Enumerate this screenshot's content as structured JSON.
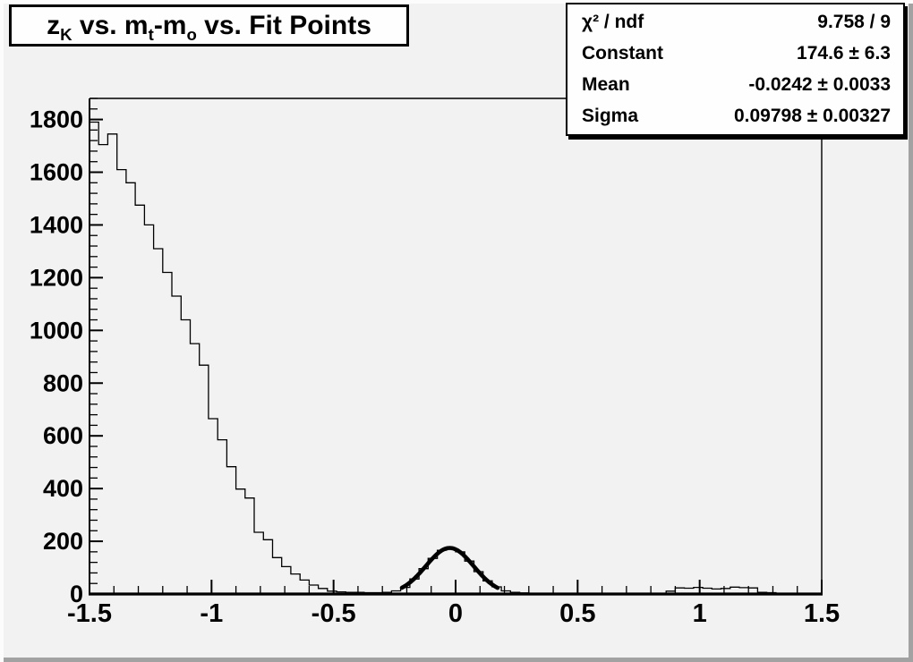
{
  "canvas": {
    "background": "#f2f2f2",
    "bevel_light": "#fcfcfc",
    "bevel_dark": "#a2a2a2",
    "ink": "#000000"
  },
  "title_box": {
    "plain_title": "z_K vs. m_t-m_o vs. Fit Points",
    "segments": [
      {
        "text": "z"
      },
      {
        "text": "K",
        "sub": true
      },
      {
        "text": " vs. m"
      },
      {
        "text": "t",
        "sub": true
      },
      {
        "text": "-m"
      },
      {
        "text": "o",
        "sub": true
      },
      {
        "text": " vs. Fit Points"
      }
    ]
  },
  "stats_box": {
    "rows": [
      {
        "label": "χ² / ndf",
        "value": "9.758 / 9"
      },
      {
        "label": "Constant",
        "value": "174.6 ± 6.3"
      },
      {
        "label": "Mean",
        "value": "-0.0242 ± 0.0033"
      },
      {
        "label": "Sigma",
        "value": "0.09798 ± 0.00327"
      }
    ]
  },
  "chart_data": {
    "type": "bar",
    "style": "step-histogram",
    "title": "z_K vs. m_t-m_o vs. Fit Points",
    "xlabel": "",
    "ylabel": "",
    "xlim": [
      -1.5,
      1.5
    ],
    "ylim": [
      0,
      1880
    ],
    "grid": false,
    "legend_position": "none",
    "bin_start": -1.5,
    "bin_width": 0.0375,
    "bin_values": [
      1790,
      1705,
      1745,
      1610,
      1560,
      1475,
      1400,
      1310,
      1220,
      1130,
      1040,
      950,
      868,
      665,
      585,
      483,
      398,
      364,
      234,
      206,
      138,
      104,
      76,
      53,
      34,
      21,
      11,
      8,
      6,
      6,
      5,
      5,
      6,
      12,
      25,
      57,
      96,
      135,
      166,
      175,
      160,
      125,
      85,
      50,
      27,
      12,
      6,
      4,
      3,
      3,
      2,
      3,
      2,
      2,
      3,
      2,
      2,
      3,
      2,
      2,
      3,
      2,
      3,
      11,
      23,
      22,
      25,
      22,
      19,
      21,
      26,
      24,
      23,
      6,
      5,
      2,
      2,
      2,
      1,
      1
    ],
    "x_major_ticks": [
      -1.5,
      -1,
      -0.5,
      0,
      0.5,
      1,
      1.5
    ],
    "x_tick_labels": [
      "-1.5",
      "-1",
      "-0.5",
      "0",
      "0.5",
      "1",
      "1.5"
    ],
    "x_minor_step": 0.1,
    "y_major_ticks": [
      0,
      200,
      400,
      600,
      800,
      1000,
      1200,
      1400,
      1600,
      1800
    ],
    "y_tick_labels": [
      "0",
      "200",
      "400",
      "600",
      "800",
      "1000",
      "1200",
      "1400",
      "1600",
      "1800"
    ],
    "y_minor_step": 40,
    "fit": {
      "shape": "gaussian",
      "constant": 174.6,
      "mean": -0.0242,
      "sigma": 0.09798,
      "draw_range": [
        -0.22,
        0.172
      ]
    }
  }
}
